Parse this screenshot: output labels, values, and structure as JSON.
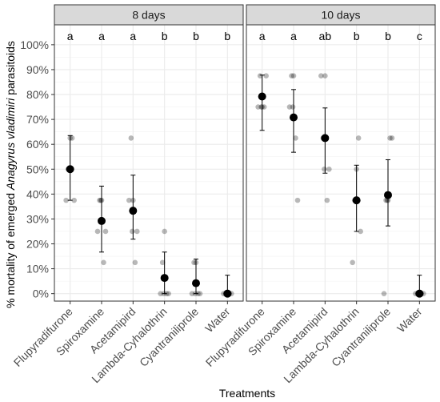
{
  "chart_data": {
    "type": "scatter",
    "ylabel_parts": [
      "% mortality of emerged ",
      "Anagyrus vladimiri",
      " parasitoids"
    ],
    "xlabel": "Treatments",
    "ylim": [
      -3,
      108
    ],
    "y_ticks": [
      0,
      10,
      20,
      30,
      40,
      50,
      60,
      70,
      80,
      90,
      100
    ],
    "y_tick_labels": [
      "0%",
      "10%",
      "20%",
      "30%",
      "40%",
      "50%",
      "60%",
      "70%",
      "80%",
      "90%",
      "100%"
    ],
    "categories": [
      "Flupyradifurone",
      "Spiroxamine",
      "Acetamipird",
      "Lambda-Cyhalothrin",
      "Cyantraniliprole",
      "Water"
    ],
    "grid": true,
    "panels": [
      {
        "title": "8 days",
        "letters": [
          "a",
          "a",
          "a",
          "b",
          "b",
          "b"
        ],
        "mean": [
          50,
          29.2,
          33.3,
          6.3,
          4.2,
          0
        ],
        "lower": [
          37.5,
          16.7,
          21.9,
          0,
          0,
          0
        ],
        "upper": [
          63.5,
          43.2,
          47.6,
          16.7,
          13.9,
          7.4
        ],
        "observations": [
          [
            37.5,
            50,
            62.5,
            37.5,
            62.5,
            50
          ],
          [
            25,
            37.5,
            12.5,
            25,
            37.5,
            37.5
          ],
          [
            37.5,
            62.5,
            12.5,
            25,
            37.5,
            25
          ],
          [
            0,
            12.5,
            0,
            0,
            25,
            0
          ],
          [
            0,
            12.5,
            0,
            0,
            12.5,
            0
          ],
          [
            0,
            0,
            0,
            0,
            0,
            0
          ]
        ]
      },
      {
        "title": "10 days",
        "letters": [
          "a",
          "a",
          "ab",
          "b",
          "b",
          "c"
        ],
        "mean": [
          79.2,
          70.8,
          62.5,
          37.5,
          39.6,
          0
        ],
        "lower": [
          65.6,
          56.8,
          48.4,
          25,
          27.2,
          0
        ],
        "upper": [
          87.8,
          82,
          74.6,
          51.6,
          53.8,
          7.4
        ],
        "observations": [
          [
            75,
            87.5,
            75,
            87.5,
            75,
            75
          ],
          [
            75,
            87.5,
            62.5,
            37.5,
            87.5,
            75
          ],
          [
            87.5,
            62.5,
            37.5,
            50,
            87.5,
            50
          ],
          [
            12.5,
            37.5,
            62.5,
            25,
            50,
            37.5
          ],
          [
            0,
            37.5,
            62.5,
            62.5,
            37.5,
            37.5
          ],
          [
            0,
            0,
            0,
            0,
            0,
            0
          ]
        ]
      }
    ]
  }
}
